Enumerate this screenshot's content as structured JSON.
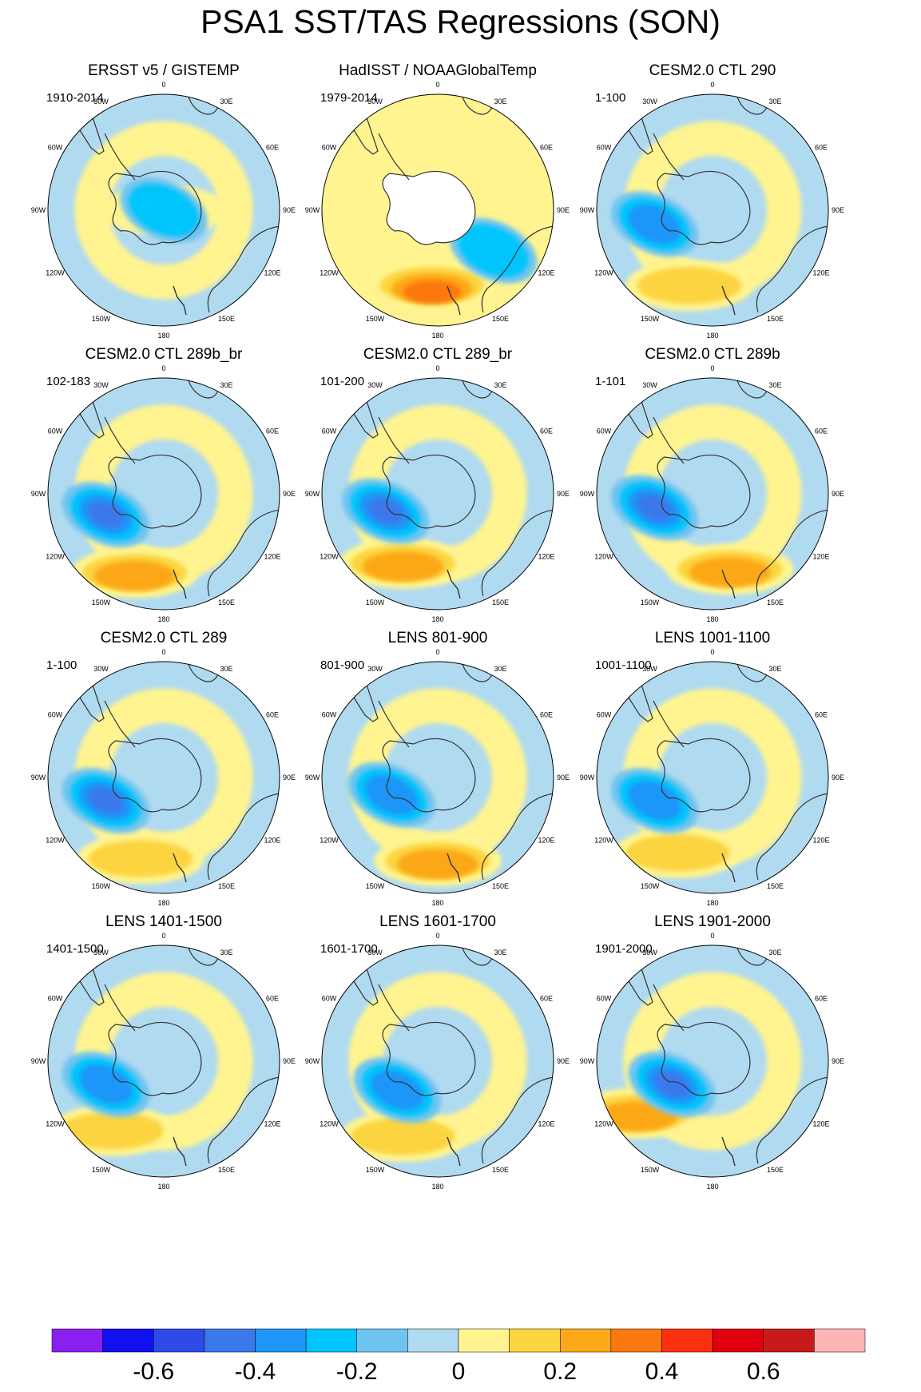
{
  "title": "PSA1 SST/TAS Regressions (SON)",
  "lon_labels": [
    "0",
    "30E",
    "60E",
    "90E",
    "120E",
    "150E",
    "180",
    "150W",
    "120W",
    "90W",
    "60W",
    "30W"
  ],
  "panels": [
    {
      "title": "ERSST v5 / GISTEMP",
      "period": "1910-2014"
    },
    {
      "title": "HadISST / NOAAGlobalTemp",
      "period": "1979-2014"
    },
    {
      "title": "CESM2.0 CTL 290",
      "period": "1-100"
    },
    {
      "title": "CESM2.0 CTL 289b_br",
      "period": "102-183"
    },
    {
      "title": "CESM2.0 CTL 289_br",
      "period": "101-200"
    },
    {
      "title": "CESM2.0 CTL 289b",
      "period": "1-101"
    },
    {
      "title": "CESM2.0 CTL 289",
      "period": "1-100"
    },
    {
      "title": "LENS 801-900",
      "period": "801-900"
    },
    {
      "title": "LENS 1001-1100",
      "period": "1001-1100"
    },
    {
      "title": "LENS 1401-1500",
      "period": "1401-1500"
    },
    {
      "title": "LENS 1601-1700",
      "period": "1601-1700"
    },
    {
      "title": "LENS 1901-2000",
      "period": "1901-2000"
    }
  ],
  "chart_data": {
    "type": "heatmap",
    "title": "PSA1 SST/TAS Regressions (SON)",
    "projection": "south-polar-stereographic",
    "colorbar": {
      "colors": [
        "#8a20f0",
        "#1010f0",
        "#2e4ae8",
        "#3a78ec",
        "#1e96f8",
        "#00c4fc",
        "#6ec4f0",
        "#b0daf0",
        "#fff490",
        "#fcd440",
        "#fca818",
        "#fc7810",
        "#fc3010",
        "#e00010",
        "#c81a1a",
        "#fcb4b4"
      ],
      "tick_values": [
        -0.6,
        -0.4,
        -0.2,
        0,
        0.2,
        0.4,
        0.6
      ],
      "tick_labels": [
        "-0.6",
        "-0.4",
        "-0.2",
        "0",
        "0.2",
        "0.4",
        "0.6"
      ]
    },
    "panel_features": [
      {
        "blue_rl": [
          0,
          0
        ],
        "blue_int": 1,
        "warm_rl": [
          0,
          0
        ],
        "warm_int": 0
      },
      {
        "blue_rl": [
          0.48,
          0.35
        ],
        "blue_int": 1,
        "warm_rl": [
          -0.05,
          0.65
        ],
        "warm_int": 3,
        "missing_antarctica": true
      },
      {
        "blue_rl": [
          -0.5,
          0.12
        ],
        "blue_int": 2,
        "warm_rl": [
          -0.2,
          0.65
        ],
        "warm_int": 1
      },
      {
        "blue_rl": [
          -0.5,
          0.18
        ],
        "blue_int": 3,
        "warm_rl": [
          -0.25,
          0.68
        ],
        "warm_int": 2
      },
      {
        "blue_rl": [
          -0.45,
          0.15
        ],
        "blue_int": 3,
        "warm_rl": [
          -0.3,
          0.6
        ],
        "warm_int": 2
      },
      {
        "blue_rl": [
          -0.5,
          0.12
        ],
        "blue_int": 3,
        "warm_rl": [
          0.15,
          0.65
        ],
        "warm_int": 2
      },
      {
        "blue_rl": [
          -0.5,
          0.2
        ],
        "blue_int": 3,
        "warm_rl": [
          -0.2,
          0.7
        ],
        "warm_int": 1
      },
      {
        "blue_rl": [
          -0.4,
          0.15
        ],
        "blue_int": 2,
        "warm_rl": [
          0.0,
          0.72
        ],
        "warm_int": 2
      },
      {
        "blue_rl": [
          -0.5,
          0.2
        ],
        "blue_int": 2,
        "warm_rl": [
          -0.3,
          0.65
        ],
        "warm_int": 1
      },
      {
        "blue_rl": [
          -0.5,
          0.2
        ],
        "blue_int": 2,
        "warm_rl": [
          -0.45,
          0.6
        ],
        "warm_int": 1
      },
      {
        "blue_rl": [
          -0.35,
          0.25
        ],
        "blue_int": 2,
        "warm_rl": [
          -0.3,
          0.65
        ],
        "warm_int": 1
      },
      {
        "blue_rl": [
          -0.35,
          0.2
        ],
        "blue_int": 3,
        "warm_rl": [
          -0.65,
          0.45
        ],
        "warm_int": 2
      }
    ]
  }
}
